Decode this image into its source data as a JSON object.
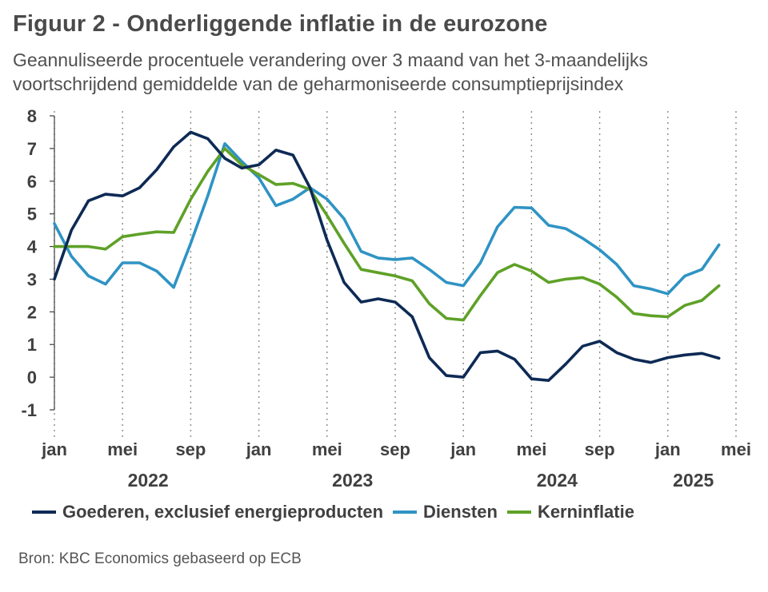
{
  "title": "Figuur 2 - Onderliggende inflatie in de eurozone",
  "subtitle": "Geannuliseerde procentuele verandering over 3 maand van het 3-maandelijks voortschrijdend gemiddelde van de geharmoniseerde consumptieprijsindex",
  "source": "Bron: KBC Economics gebaseerd op ECB",
  "colors": {
    "goederen": "#0e2a55",
    "diensten": "#2f93c4",
    "kerninflatie": "#5ea127",
    "grid": "#d9d9d9"
  },
  "chart_data": {
    "type": "line",
    "title": "Figuur 2 - Onderliggende inflatie in de eurozone",
    "ylim": [
      -1,
      8
    ],
    "yticks": [
      "-1",
      "0",
      "1",
      "2",
      "3",
      "4",
      "5",
      "6",
      "7",
      "8"
    ],
    "x_tick_labels": [
      "jan",
      "mei",
      "sep",
      "jan",
      "mei",
      "sep",
      "jan",
      "mei",
      "sep",
      "jan",
      "mei"
    ],
    "x_tick_months": [
      "2022-01",
      "2022-05",
      "2022-09",
      "2023-01",
      "2023-05",
      "2023-09",
      "2024-01",
      "2024-05",
      "2024-09",
      "2025-01",
      "2025-05"
    ],
    "year_labels": [
      "2022",
      "2023",
      "2024",
      "2025"
    ],
    "x": [
      "2022-01",
      "2022-02",
      "2022-03",
      "2022-04",
      "2022-05",
      "2022-06",
      "2022-07",
      "2022-08",
      "2022-09",
      "2022-10",
      "2022-11",
      "2022-12",
      "2023-01",
      "2023-02",
      "2023-03",
      "2023-04",
      "2023-05",
      "2023-06",
      "2023-07",
      "2023-08",
      "2023-09",
      "2023-10",
      "2023-11",
      "2023-12",
      "2024-01",
      "2024-02",
      "2024-03",
      "2024-04",
      "2024-05",
      "2024-06",
      "2024-07",
      "2024-08",
      "2024-09",
      "2024-10",
      "2024-11",
      "2024-12",
      "2025-01",
      "2025-02",
      "2025-03",
      "2025-04"
    ],
    "grid": "vertical dotted at tick months",
    "legend_position": "bottom",
    "series": [
      {
        "name": "Goederen, exclusief energieproducten",
        "color": "#0e2a55",
        "values": [
          3.0,
          4.5,
          5.4,
          5.6,
          5.55,
          5.8,
          6.35,
          7.05,
          7.5,
          7.3,
          6.7,
          6.4,
          6.5,
          6.95,
          6.8,
          5.8,
          4.2,
          2.9,
          2.3,
          2.4,
          2.3,
          1.85,
          0.6,
          0.05,
          0.0,
          0.75,
          0.8,
          0.55,
          -0.05,
          -0.1,
          0.4,
          0.95,
          1.1,
          0.75,
          0.55,
          0.45,
          0.6,
          0.68,
          0.73,
          0.58
        ]
      },
      {
        "name": "Diensten",
        "color": "#2f93c4",
        "values": [
          4.7,
          3.7,
          3.1,
          2.85,
          3.5,
          3.5,
          3.25,
          2.75,
          4.1,
          5.55,
          7.15,
          6.6,
          6.1,
          5.25,
          5.45,
          5.8,
          5.45,
          4.85,
          3.85,
          3.65,
          3.6,
          3.65,
          3.3,
          2.9,
          2.8,
          3.5,
          4.6,
          5.2,
          5.18,
          4.65,
          4.55,
          4.25,
          3.9,
          3.45,
          2.8,
          2.7,
          2.55,
          3.1,
          3.3,
          4.05
        ]
      },
      {
        "name": "Kerninflatie",
        "color": "#5ea127",
        "values": [
          4.0,
          4.0,
          4.0,
          3.92,
          4.3,
          4.38,
          4.45,
          4.43,
          5.45,
          6.3,
          7.0,
          6.5,
          6.2,
          5.9,
          5.93,
          5.75,
          4.95,
          4.1,
          3.3,
          3.2,
          3.1,
          2.95,
          2.25,
          1.8,
          1.75,
          2.5,
          3.2,
          3.45,
          3.25,
          2.9,
          3.0,
          3.05,
          2.85,
          2.45,
          1.95,
          1.88,
          1.85,
          2.2,
          2.35,
          2.8
        ]
      }
    ]
  }
}
